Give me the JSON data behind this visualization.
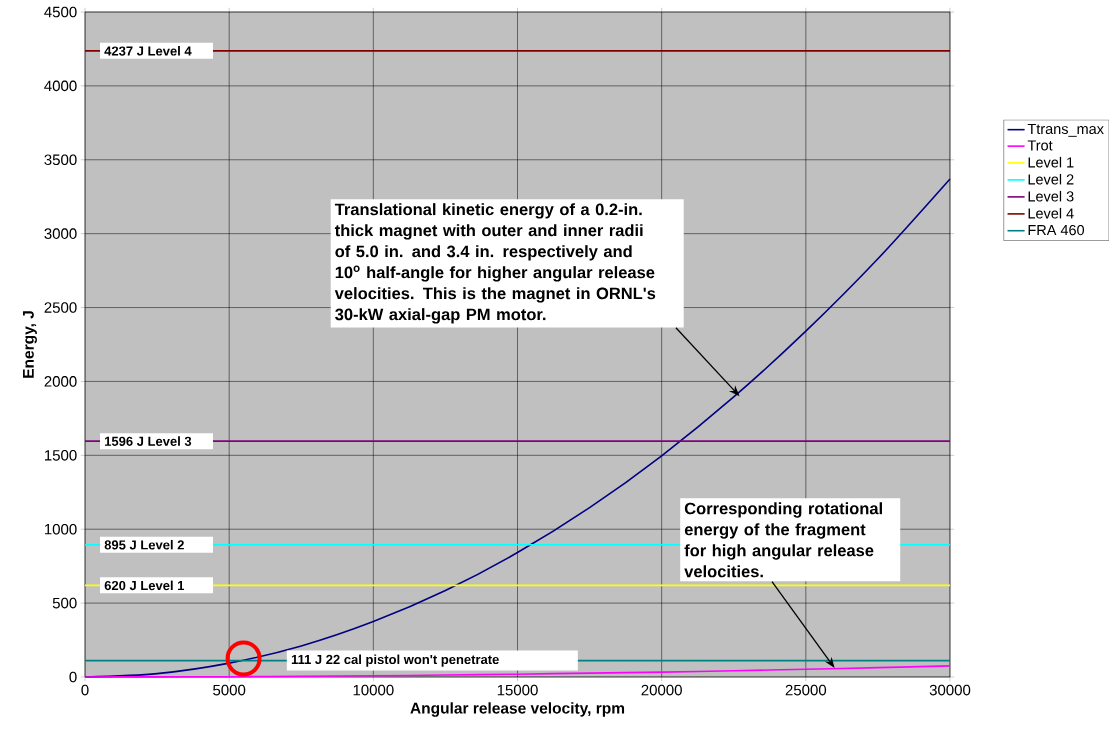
{
  "chart_data": {
    "type": "line",
    "xlabel": "Angular release velocity, rpm",
    "ylabel": "Energy, J",
    "x": [
      0,
      2500,
      5000,
      7500,
      10000,
      12500,
      15000,
      17500,
      20000,
      22500,
      25000,
      27500,
      30000
    ],
    "series": [
      {
        "name": "Ttrans_max",
        "color": "#000080",
        "values": [
          0,
          23,
          94,
          210,
          375,
          585,
          842,
          1146,
          1497,
          1895,
          2340,
          2830,
          3370
        ]
      },
      {
        "name": "Trot",
        "color": "#ff00ff",
        "values": [
          0,
          1,
          2,
          5,
          8,
          13,
          19,
          26,
          33,
          42,
          52,
          63,
          75
        ]
      },
      {
        "name": "Level 1",
        "color": "#ffff00",
        "values": [
          620,
          null,
          620,
          620,
          620,
          620,
          620,
          620,
          620,
          null,
          null,
          null,
          620
        ]
      },
      {
        "name": "Level 2",
        "color": "#00ffff",
        "values": [
          895,
          null,
          895,
          895,
          895,
          895,
          895,
          895,
          895,
          null,
          null,
          null,
          895
        ]
      },
      {
        "name": "Level 3",
        "color": "#800080",
        "values": [
          1596,
          null,
          1596,
          1596,
          1596,
          1596,
          1596,
          1596,
          1596,
          1596,
          1596,
          1596,
          1596
        ]
      },
      {
        "name": "Level 4",
        "color": "#800000",
        "values": [
          4237,
          null,
          4237,
          4237,
          4237,
          4237,
          4237,
          4237,
          4237,
          4237,
          4237,
          4237,
          4237
        ]
      },
      {
        "name": "FRA 460",
        "color": "#008080",
        "values": [
          111,
          111,
          111,
          null,
          null,
          null,
          null,
          111,
          111,
          111,
          111,
          111,
          111
        ]
      }
    ],
    "annotations": [
      {
        "text": "4237 J Level 4",
        "x": 520,
        "y": 4237
      },
      {
        "text": "1596 J Level 3",
        "x": 520,
        "y": 1596
      },
      {
        "text": "895 J Level 2",
        "x": 520,
        "y": 895
      },
      {
        "text": "620 J Level 1",
        "x": 520,
        "y": 620
      },
      {
        "text": "111 J 22 cal pistol won't penetrate",
        "x": 7000,
        "y": 111
      },
      {
        "text": "Translational kinetic energy of a  0.2-in. thick magnet with outer and inner radii of 5.0 in. and 3.4 in. respectively and 10$^{o}$ half-angle for higher angular release velocities. This is the magnet in ORNL's 30-kW axial-gap PM motor.",
        "x": 22700,
        "y": 1900
      },
      {
        "text": "Corresponding rotational energy of the fragment for high angular release velocities.",
        "x": 26000,
        "y": 60
      }
    ],
    "xlim": [
      0,
      30000
    ],
    "ylim": [
      0,
      4500
    ],
    "xticks": [
      0,
      5000,
      10000,
      15000,
      20000,
      25000,
      30000
    ],
    "yticks": [
      0,
      500,
      1000,
      1500,
      2000,
      2500,
      3000,
      3500,
      4000,
      4500
    ],
    "grid": true,
    "legend": "right"
  }
}
